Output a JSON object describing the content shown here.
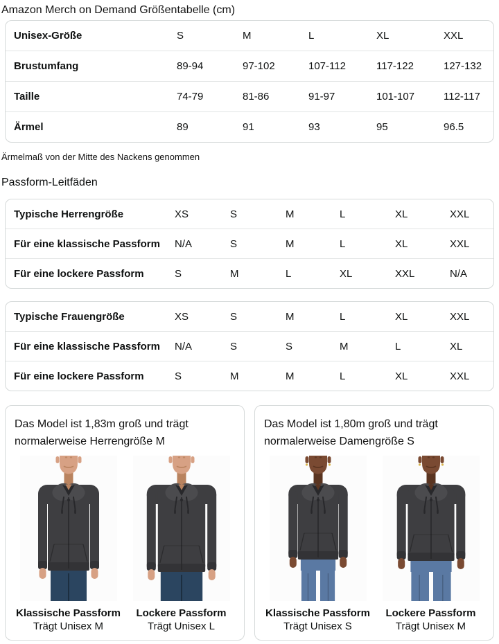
{
  "page": {
    "title": "Amazon Merch on Demand Größentabelle (cm)"
  },
  "size_table": {
    "header_label": "Unisex-Größe",
    "columns": [
      "S",
      "M",
      "L",
      "XL",
      "XXL"
    ],
    "rows": [
      {
        "label": "Brustumfang",
        "values": [
          "89-94",
          "97-102",
          "107-112",
          "117-122",
          "127-132"
        ]
      },
      {
        "label": "Taille",
        "values": [
          "74-79",
          "81-86",
          "91-97",
          "101-107",
          "112-117"
        ]
      },
      {
        "label": "Ärmel",
        "values": [
          "89",
          "91",
          "93",
          "95",
          "96.5"
        ]
      }
    ],
    "note": "Ärmelmaß von der Mitte des Nackens genommen"
  },
  "fit_guides": {
    "heading": "Passform-Leitfäden",
    "tables": [
      {
        "rows": [
          {
            "label": "Typische Herrengröße",
            "values": [
              "XS",
              "S",
              "M",
              "L",
              "XL",
              "XXL"
            ]
          },
          {
            "label": "Für eine klassische Passform",
            "values": [
              "N/A",
              "S",
              "M",
              "L",
              "XL",
              "XXL"
            ]
          },
          {
            "label": "Für eine lockere Passform",
            "values": [
              "S",
              "M",
              "L",
              "XL",
              "XXL",
              "N/A"
            ]
          }
        ]
      },
      {
        "rows": [
          {
            "label": "Typische Frauengröße",
            "values": [
              "XS",
              "S",
              "M",
              "L",
              "XL",
              "XXL"
            ]
          },
          {
            "label": "Für eine klassische Passform",
            "values": [
              "N/A",
              "S",
              "S",
              "M",
              "L",
              "XL"
            ]
          },
          {
            "label": "Für eine lockere Passform",
            "values": [
              "S",
              "M",
              "M",
              "L",
              "XL",
              "XXL"
            ]
          }
        ]
      }
    ]
  },
  "panels": [
    {
      "caption": "Das Model ist 1,83m groß und trägt normalerweise Herrengröße M",
      "figures": [
        {
          "fit_label": "Klassische Passform",
          "wears": "Trägt Unisex M"
        },
        {
          "fit_label": "Lockere Passform",
          "wears": "Trägt Unisex L"
        }
      ]
    },
    {
      "caption": "Das Model ist 1,80m groß und trägt normalerweise Damengröße S",
      "figures": [
        {
          "fit_label": "Klassische Passform",
          "wears": "Trägt Unisex S"
        },
        {
          "fit_label": "Lockere Passform",
          "wears": "Trägt Unisex M"
        }
      ]
    }
  ],
  "colors": {
    "table_border": "#d5d9d9",
    "row_divider": "#e1e4e4",
    "text": "#0f1111",
    "photo_bg": "#fcfcfc",
    "hoodie": "#3e3e41",
    "hoodie_light": "#4b4b4e",
    "hoodie_dark": "#28282b",
    "hoodie_band": "#333336",
    "skin_light": "#d7a184",
    "skin_light_shade": "#b9835f",
    "skin_dark": "#7a4a32",
    "skin_dark_shade": "#5a3420",
    "jeans_dark": "#2b4560",
    "jeans_light": "#5a79a3",
    "earring": "#d9b44a"
  }
}
